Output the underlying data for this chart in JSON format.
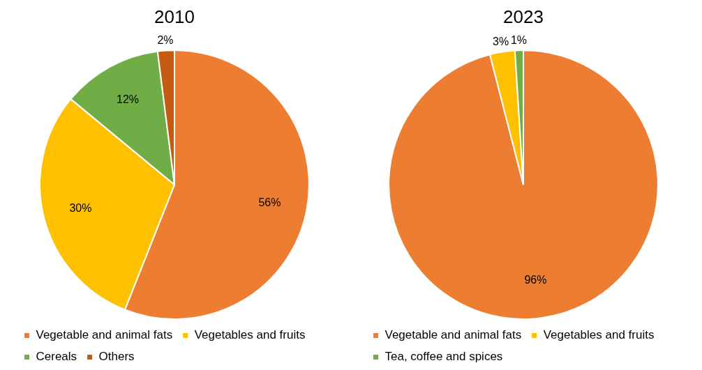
{
  "chart_data": [
    {
      "type": "pie",
      "title": "2010",
      "categories": [
        "Vegetable and animal fats",
        "Vegetables and fruits",
        "Cereals",
        "Others"
      ],
      "values": [
        56,
        30,
        12,
        2
      ],
      "colors": [
        "#ed7d31",
        "#ffc000",
        "#70ad47",
        "#c55a11"
      ],
      "value_labels": [
        "56%",
        "30%",
        "12%",
        "2%"
      ],
      "legend": "bottom"
    },
    {
      "type": "pie",
      "title": "2023",
      "categories": [
        "Vegetable and animal fats",
        "Vegetables and fruits",
        "Tea, coffee and spices"
      ],
      "values": [
        96,
        3,
        1
      ],
      "colors": [
        "#ed7d31",
        "#ffc000",
        "#70ad47"
      ],
      "value_labels": [
        "96%",
        "3%",
        "1%"
      ],
      "legend": "bottom"
    }
  ]
}
